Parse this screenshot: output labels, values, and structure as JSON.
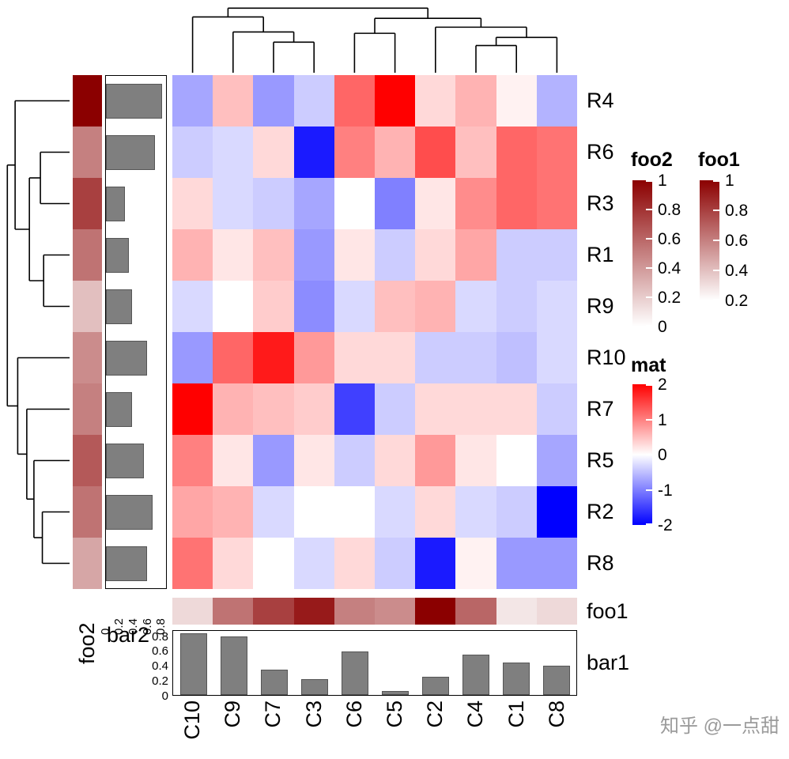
{
  "labels": {
    "foo1": "foo1",
    "foo2": "foo2",
    "bar1": "bar1",
    "bar2": "bar2"
  },
  "watermark": "知乎 @一点甜",
  "chart_data": {
    "type": "heatmap",
    "title": "",
    "rows": [
      "R4",
      "R6",
      "R3",
      "R1",
      "R9",
      "R10",
      "R7",
      "R5",
      "R2",
      "R8"
    ],
    "cols": [
      "C10",
      "C9",
      "C7",
      "C3",
      "C6",
      "C5",
      "C2",
      "C4",
      "C1",
      "C8"
    ],
    "values": [
      [
        -0.7,
        0.5,
        -0.8,
        -0.4,
        1.2,
        2.0,
        0.3,
        0.6,
        0.1,
        -0.6
      ],
      [
        -0.4,
        -0.3,
        0.3,
        -1.8,
        1.0,
        0.6,
        1.4,
        0.5,
        1.2,
        1.1
      ],
      [
        0.3,
        -0.3,
        -0.4,
        -0.7,
        0.0,
        -1.0,
        0.2,
        0.9,
        1.2,
        1.1
      ],
      [
        0.6,
        0.2,
        0.5,
        -0.8,
        0.2,
        -0.4,
        0.3,
        0.7,
        -0.4,
        -0.4
      ],
      [
        -0.3,
        0.0,
        0.4,
        -0.9,
        -0.3,
        0.5,
        0.6,
        -0.3,
        -0.4,
        -0.3
      ],
      [
        -0.8,
        1.2,
        1.8,
        0.8,
        0.3,
        0.3,
        -0.4,
        -0.4,
        -0.5,
        -0.3
      ],
      [
        2.0,
        0.6,
        0.5,
        0.4,
        -1.5,
        -0.4,
        0.3,
        0.3,
        0.3,
        -0.4
      ],
      [
        1.0,
        0.2,
        -0.8,
        0.2,
        -0.4,
        0.3,
        0.8,
        0.2,
        0.0,
        -0.7
      ],
      [
        0.7,
        0.6,
        -0.3,
        0.0,
        0.0,
        -0.3,
        0.3,
        -0.3,
        -0.4,
        -2.0
      ],
      [
        1.1,
        0.3,
        0.0,
        -0.3,
        0.3,
        -0.4,
        -1.8,
        0.1,
        -0.8,
        -0.8
      ]
    ],
    "color_scale": {
      "domain": [
        -2,
        0,
        2
      ],
      "colors": [
        "#0000FF",
        "#FFFFFF",
        "#FF0000"
      ]
    },
    "annotation_scale": {
      "domain": [
        0,
        1
      ],
      "colors": [
        "#FFFFFF",
        "#8B0000"
      ]
    },
    "row_annotations": {
      "foo2": {
        "values": [
          1.0,
          0.5,
          0.75,
          0.55,
          0.25,
          0.45,
          0.5,
          0.65,
          0.55,
          0.35
        ]
      },
      "bar2": {
        "values": [
          0.82,
          0.72,
          0.28,
          0.33,
          0.38,
          0.6,
          0.38,
          0.55,
          0.68,
          0.6
        ],
        "axis_ticks": [
          "0",
          "0.2",
          "0.4",
          "0.6",
          "0.8"
        ]
      }
    },
    "col_annotations": {
      "foo1": {
        "values": [
          0.15,
          0.55,
          0.75,
          0.9,
          0.5,
          0.45,
          1.0,
          0.6,
          0.1,
          0.15
        ]
      },
      "bar1": {
        "values": [
          0.85,
          0.8,
          0.35,
          0.22,
          0.6,
          0.05,
          0.25,
          0.55,
          0.45,
          0.4
        ],
        "axis_ticks": [
          "0",
          "0.2",
          "0.4",
          "0.6",
          "0.8"
        ]
      }
    },
    "legends": [
      {
        "name": "foo2",
        "kind": "foo",
        "ticks": [
          "1",
          "0.8",
          "0.6",
          "0.4",
          "0.2",
          "0"
        ]
      },
      {
        "name": "foo1",
        "kind": "foo",
        "ticks": [
          "1",
          "0.8",
          "0.6",
          "0.4",
          "0.2"
        ]
      },
      {
        "name": "mat",
        "kind": "mat",
        "ticks": [
          "2",
          "1",
          "0",
          "-1",
          "-2"
        ]
      }
    ],
    "dendrograms": {
      "col_segments": [
        [
          0.25,
          1,
          0.25,
          0.55
        ],
        [
          0.35,
          1,
          0.35,
          0.55
        ],
        [
          0.25,
          0.55,
          0.35,
          0.55
        ],
        [
          0.15,
          1,
          0.15,
          0.4
        ],
        [
          0.3,
          0.55,
          0.3,
          0.4
        ],
        [
          0.15,
          0.4,
          0.3,
          0.4
        ],
        [
          0.05,
          1,
          0.05,
          0.18
        ],
        [
          0.225,
          0.4,
          0.225,
          0.18
        ],
        [
          0.05,
          0.18,
          0.225,
          0.18
        ],
        [
          0.45,
          1,
          0.45,
          0.42
        ],
        [
          0.55,
          1,
          0.55,
          0.42
        ],
        [
          0.45,
          0.42,
          0.55,
          0.42
        ],
        [
          0.75,
          1,
          0.75,
          0.6
        ],
        [
          0.85,
          1,
          0.85,
          0.6
        ],
        [
          0.75,
          0.6,
          0.85,
          0.6
        ],
        [
          0.8,
          0.6,
          0.8,
          0.48
        ],
        [
          0.95,
          1,
          0.95,
          0.48
        ],
        [
          0.8,
          0.48,
          0.95,
          0.48
        ],
        [
          0.65,
          1,
          0.65,
          0.33
        ],
        [
          0.875,
          0.48,
          0.875,
          0.33
        ],
        [
          0.65,
          0.33,
          0.875,
          0.33
        ],
        [
          0.5,
          0.42,
          0.5,
          0.2
        ],
        [
          0.7625,
          0.33,
          0.7625,
          0.2
        ],
        [
          0.5,
          0.2,
          0.7625,
          0.2
        ],
        [
          0.1375,
          0.18,
          0.1375,
          0.05
        ],
        [
          0.63125,
          0.2,
          0.63125,
          0.05
        ],
        [
          0.1375,
          0.05,
          0.63125,
          0.05
        ]
      ],
      "row_segments": [
        [
          1,
          0.15,
          0.55,
          0.15
        ],
        [
          1,
          0.25,
          0.55,
          0.25
        ],
        [
          0.55,
          0.15,
          0.55,
          0.25
        ],
        [
          1,
          0.35,
          0.6,
          0.35
        ],
        [
          1,
          0.45,
          0.6,
          0.45
        ],
        [
          0.6,
          0.35,
          0.6,
          0.45
        ],
        [
          0.55,
          0.2,
          0.38,
          0.2
        ],
        [
          0.6,
          0.4,
          0.38,
          0.4
        ],
        [
          0.38,
          0.2,
          0.38,
          0.4
        ],
        [
          1,
          0.05,
          0.16,
          0.05
        ],
        [
          0.38,
          0.3,
          0.16,
          0.3
        ],
        [
          0.16,
          0.05,
          0.16,
          0.3
        ],
        [
          1,
          0.85,
          0.58,
          0.85
        ],
        [
          1,
          0.95,
          0.58,
          0.95
        ],
        [
          0.58,
          0.85,
          0.58,
          0.95
        ],
        [
          1,
          0.75,
          0.45,
          0.75
        ],
        [
          0.58,
          0.9,
          0.45,
          0.9
        ],
        [
          0.45,
          0.75,
          0.45,
          0.9
        ],
        [
          1,
          0.65,
          0.34,
          0.65
        ],
        [
          0.45,
          0.825,
          0.34,
          0.825
        ],
        [
          0.34,
          0.65,
          0.34,
          0.825
        ],
        [
          1,
          0.55,
          0.2,
          0.55
        ],
        [
          0.34,
          0.7375,
          0.2,
          0.7375
        ],
        [
          0.2,
          0.55,
          0.2,
          0.7375
        ],
        [
          0.16,
          0.175,
          0.04,
          0.175
        ],
        [
          0.2,
          0.64375,
          0.04,
          0.64375
        ],
        [
          0.04,
          0.175,
          0.04,
          0.64375
        ]
      ]
    }
  }
}
